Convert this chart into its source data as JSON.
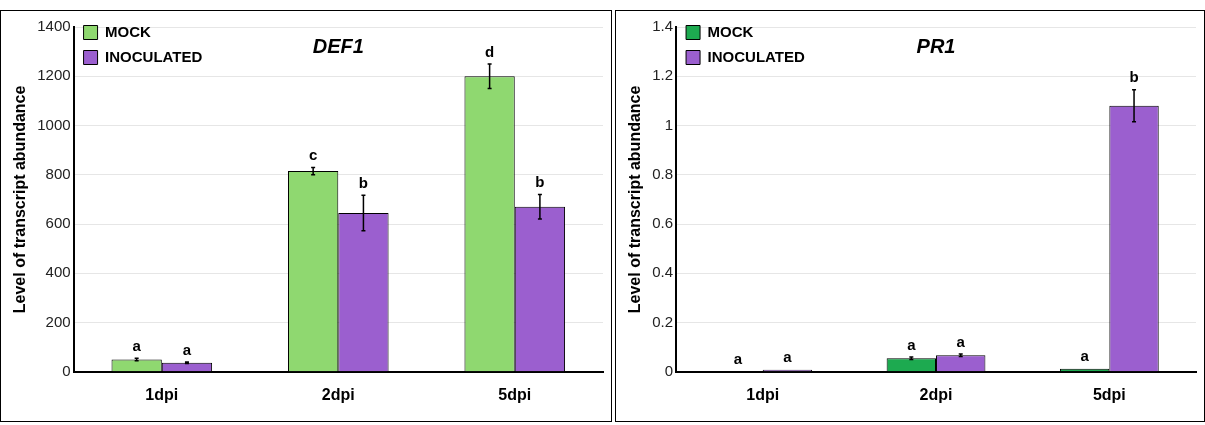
{
  "chart_data": [
    {
      "type": "bar",
      "title": "DEF1",
      "ylabel": "Level of transcript abundance",
      "categories": [
        "1dpi",
        "2dpi",
        "5dpi"
      ],
      "ylim": [
        0,
        1400
      ],
      "yticks": [
        0,
        200,
        400,
        600,
        800,
        1000,
        1200,
        1400
      ],
      "grid": "y",
      "legend": "top left",
      "series": [
        {
          "name": "MOCK",
          "color": "#8fd870",
          "values": [
            50,
            815,
            1200
          ],
          "errors": [
            5,
            15,
            50
          ],
          "value_labels": [
            "a",
            "c",
            "d"
          ]
        },
        {
          "name": "INOCULATED",
          "color": "#9b5fcf",
          "values": [
            37,
            645,
            670
          ],
          "errors": [
            3,
            72,
            50
          ],
          "value_labels": [
            "a",
            "b",
            "b"
          ]
        }
      ]
    },
    {
      "type": "bar",
      "title": "PR1",
      "ylabel": "Level of transcript abundance",
      "categories": [
        "1dpi",
        "2dpi",
        "5dpi"
      ],
      "ylim": [
        0,
        1.4
      ],
      "yticks": [
        0,
        0.2,
        0.4,
        0.6,
        0.8,
        1,
        1.2,
        1.4
      ],
      "grid": "y",
      "legend": "top left",
      "series": [
        {
          "name": "MOCK",
          "color": "#1daa50",
          "values": [
            0.003,
            0.055,
            0.012
          ],
          "errors": [
            null,
            0.005,
            null
          ],
          "value_labels": [
            "a",
            "a",
            "a"
          ]
        },
        {
          "name": "INOCULATED",
          "color": "#9b5fcf",
          "values": [
            0.008,
            0.067,
            1.08
          ],
          "errors": [
            null,
            0.005,
            0.065
          ],
          "value_labels": [
            "a",
            "a",
            "b"
          ]
        }
      ]
    }
  ]
}
